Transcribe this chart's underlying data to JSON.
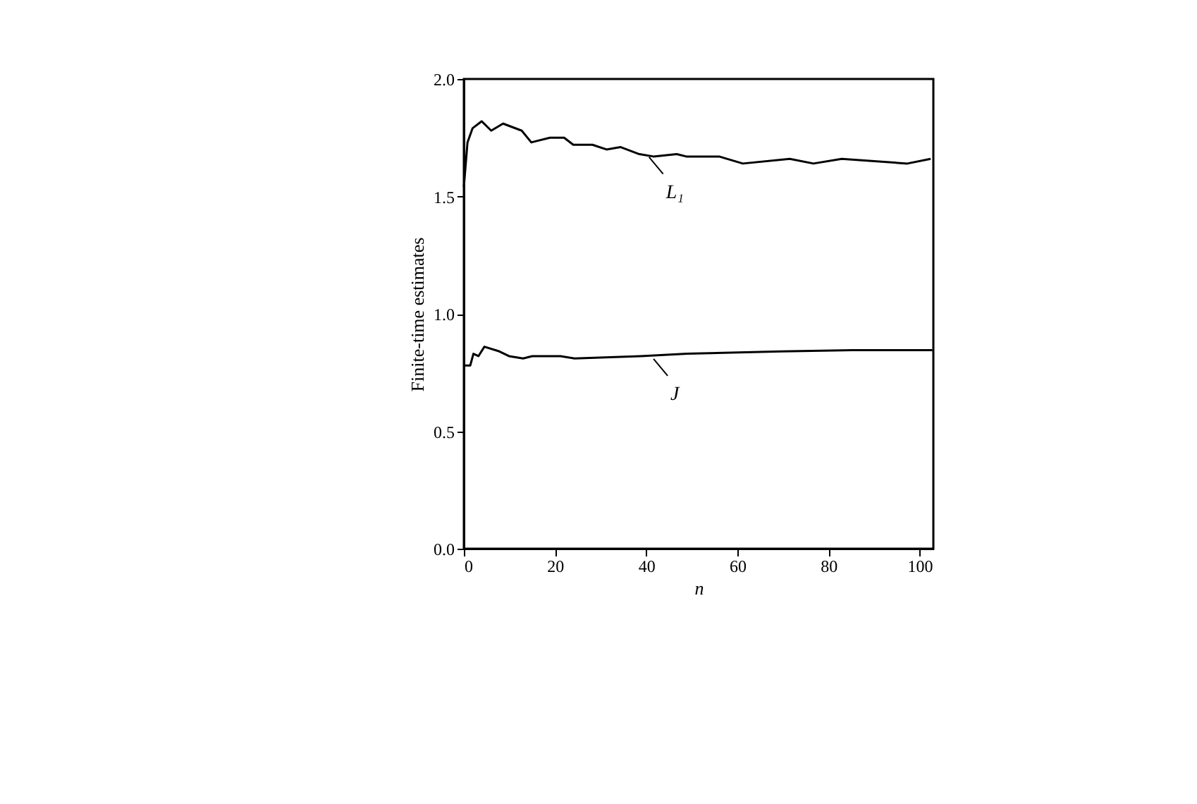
{
  "chart_data": {
    "type": "line",
    "xlabel": "n",
    "ylabel": "Finite-time estimates",
    "xlim": [
      0,
      103
    ],
    "xticks": [
      0,
      20,
      40,
      60,
      80,
      100
    ],
    "ylim": [
      0,
      2
    ],
    "yticks": [
      {
        "value": 0,
        "label": "0.0"
      },
      {
        "value": 0.5,
        "label": "0.5"
      },
      {
        "value": 1,
        "label": "1.0"
      },
      {
        "value": 1.5,
        "label": "1.5"
      },
      {
        "value": 2,
        "label": "2.0"
      }
    ],
    "grid": false,
    "marker": "none",
    "line_style": "solid",
    "annotations": [
      {
        "text": "L₁",
        "x": 40,
        "y": 1.68
      },
      {
        "text": "J",
        "x": 41,
        "y": 0.82
      }
    ],
    "series": [
      {
        "color": "#000000",
        "x": [
          0,
          0.8,
          1.9,
          3.9,
          6.0,
          8.6,
          12.7,
          14.8,
          18.9,
          22,
          24,
          28.2,
          31.3,
          34.4,
          38.5,
          41.6,
          46.7,
          48.8,
          56,
          61.2,
          71.5,
          76.7,
          82.9,
          90,
          97.3,
          102.4
        ],
        "values": [
          1.54,
          1.73,
          1.79,
          1.82,
          1.78,
          1.81,
          1.78,
          1.73,
          1.75,
          1.75,
          1.72,
          1.72,
          1.7,
          1.71,
          1.68,
          1.67,
          1.68,
          1.67,
          1.67,
          1.64,
          1.66,
          1.64,
          1.66,
          1.65,
          1.64,
          1.66
        ]
      },
      {
        "color": "#000000",
        "x": [
          0,
          1.4,
          2.1,
          3.2,
          4.5,
          7.8,
          9.9,
          13,
          15,
          21.2,
          24.3,
          38.8,
          49,
          69.7,
          85.2,
          102.8
        ],
        "values": [
          0.78,
          0.78,
          0.83,
          0.82,
          0.86,
          0.84,
          0.82,
          0.81,
          0.82,
          0.82,
          0.81,
          0.82,
          0.83,
          0.84,
          0.845,
          0.845
        ]
      }
    ]
  }
}
